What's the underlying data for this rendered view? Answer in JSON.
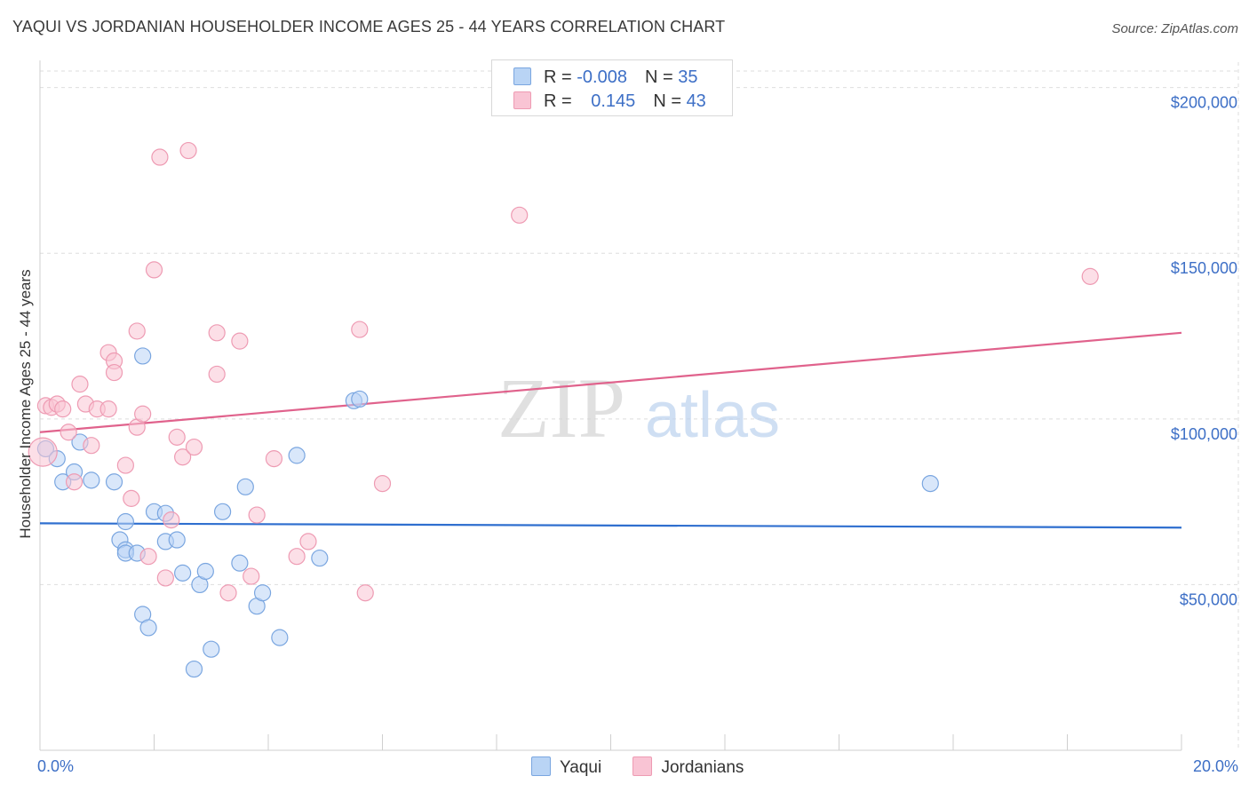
{
  "header": {
    "title": "YAQUI VS JORDANIAN HOUSEHOLDER INCOME AGES 25 - 44 YEARS CORRELATION CHART",
    "source": "Source: ZipAtlas.com"
  },
  "watermark": {
    "zip": "ZIP",
    "atlas": "atlas"
  },
  "legend": {
    "rows": [
      {
        "r_label": "R = ",
        "r_value": "-0.008",
        "n_label": "N = ",
        "n_value": "35"
      },
      {
        "r_label": "R = ",
        "r_value": "0.145",
        "n_label": "N = ",
        "n_value": "43"
      }
    ]
  },
  "colors": {
    "yaqui_fill": "#b9d4f5",
    "yaqui_stroke": "#7aa6e0",
    "yaqui_line": "#2f6fcf",
    "jordanian_fill": "#f9c4d4",
    "jordanian_stroke": "#ee9bb3",
    "jordanian_line": "#e0628c",
    "grid": "#dedede",
    "axis_text": "#3d6fc6"
  },
  "chart_data": {
    "type": "scatter",
    "title": "YAQUI VS JORDANIAN HOUSEHOLDER INCOME AGES 25 - 44 YEARS CORRELATION CHART",
    "xlabel": "",
    "ylabel": "Householder Income Ages 25 - 44 years",
    "xlim": [
      0,
      20
    ],
    "ylim": [
      0,
      205000
    ],
    "x_tick_labels": [
      "0.0%",
      "20.0%"
    ],
    "y_ticks": [
      50000,
      100000,
      150000,
      200000
    ],
    "y_tick_labels": [
      "$50,000",
      "$100,000",
      "$150,000",
      "$200,000"
    ],
    "grid": true,
    "series": [
      {
        "name": "Yaqui",
        "trend": [
          [
            0,
            68500
          ],
          [
            20,
            67200
          ]
        ],
        "points": [
          [
            0.1,
            91000
          ],
          [
            0.3,
            88000
          ],
          [
            0.4,
            81000
          ],
          [
            0.6,
            84000
          ],
          [
            0.7,
            93000
          ],
          [
            0.9,
            81500
          ],
          [
            1.3,
            81000
          ],
          [
            1.4,
            63500
          ],
          [
            1.5,
            60500
          ],
          [
            1.5,
            59500
          ],
          [
            1.5,
            69000
          ],
          [
            1.7,
            59500
          ],
          [
            1.8,
            41000
          ],
          [
            1.8,
            119000
          ],
          [
            1.9,
            37000
          ],
          [
            2.0,
            72000
          ],
          [
            2.2,
            71500
          ],
          [
            2.2,
            63000
          ],
          [
            2.4,
            63500
          ],
          [
            2.5,
            53500
          ],
          [
            2.7,
            24500
          ],
          [
            2.8,
            50000
          ],
          [
            2.9,
            54000
          ],
          [
            3.0,
            30500
          ],
          [
            3.2,
            72000
          ],
          [
            3.5,
            56500
          ],
          [
            3.6,
            79500
          ],
          [
            3.8,
            43500
          ],
          [
            3.9,
            47500
          ],
          [
            4.2,
            34000
          ],
          [
            4.5,
            89000
          ],
          [
            4.9,
            58000
          ],
          [
            5.5,
            105500
          ],
          [
            5.6,
            106000
          ],
          [
            15.6,
            80500
          ]
        ]
      },
      {
        "name": "Jordanians",
        "trend": [
          [
            0,
            96000
          ],
          [
            20,
            126000
          ]
        ],
        "points": [
          [
            0.1,
            104000
          ],
          [
            0.2,
            103500
          ],
          [
            0.3,
            104500
          ],
          [
            0.4,
            103000
          ],
          [
            0.5,
            96000
          ],
          [
            0.6,
            81000
          ],
          [
            0.7,
            110500
          ],
          [
            0.8,
            104500
          ],
          [
            0.9,
            92000
          ],
          [
            1.0,
            103000
          ],
          [
            1.2,
            103000
          ],
          [
            1.2,
            120000
          ],
          [
            1.3,
            117500
          ],
          [
            1.3,
            114000
          ],
          [
            1.5,
            86000
          ],
          [
            1.6,
            76000
          ],
          [
            1.7,
            126500
          ],
          [
            1.7,
            97500
          ],
          [
            1.8,
            101500
          ],
          [
            1.9,
            58500
          ],
          [
            2.0,
            145000
          ],
          [
            2.1,
            179000
          ],
          [
            2.2,
            52000
          ],
          [
            2.3,
            69500
          ],
          [
            2.4,
            94500
          ],
          [
            2.5,
            88500
          ],
          [
            2.6,
            181000
          ],
          [
            2.7,
            91500
          ],
          [
            3.1,
            126000
          ],
          [
            3.1,
            113500
          ],
          [
            3.3,
            47500
          ],
          [
            3.5,
            123500
          ],
          [
            3.7,
            52500
          ],
          [
            3.8,
            71000
          ],
          [
            4.1,
            88000
          ],
          [
            4.5,
            58500
          ],
          [
            4.7,
            63000
          ],
          [
            5.6,
            127000
          ],
          [
            5.7,
            47500
          ],
          [
            6.0,
            80500
          ],
          [
            8.4,
            161500
          ],
          [
            18.4,
            143000
          ],
          [
            0.05,
            90000
          ]
        ]
      }
    ]
  }
}
